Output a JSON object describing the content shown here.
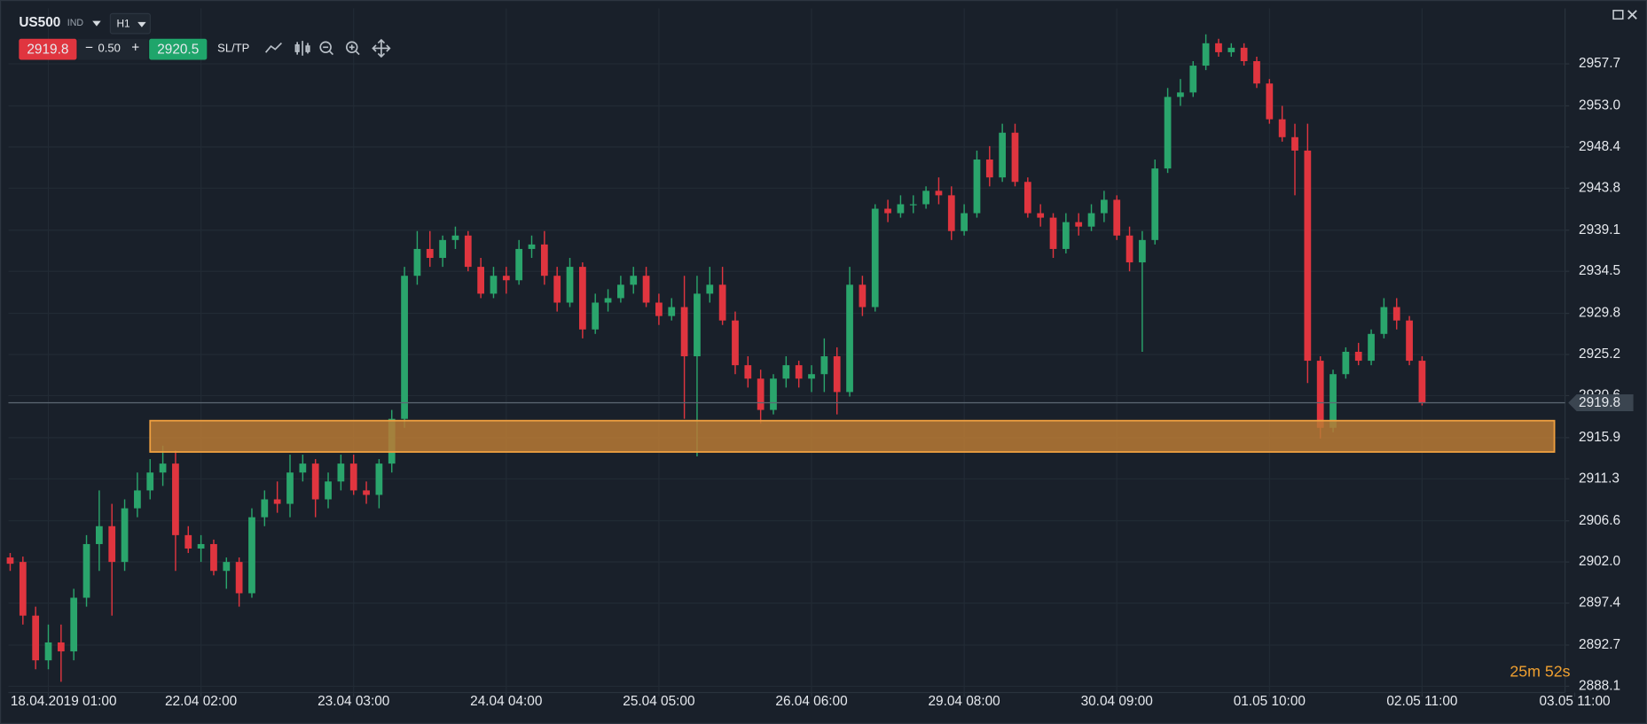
{
  "toolbar": {
    "symbol": "US500",
    "market": "IND",
    "timeframe": "H1",
    "sell_price": "2919.8",
    "decrease": "−",
    "spread": "0.50",
    "increase": "+",
    "buy_price": "2920.5",
    "sltp": "SL/TP"
  },
  "chart_data": {
    "type": "candlestick",
    "up_color": "#2aa56c",
    "down_color": "#e0353f",
    "ohlc": [
      [
        2902.5,
        2903.0,
        2901.0,
        2901.8
      ],
      [
        2902.0,
        2902.6,
        2895.0,
        2896.0
      ],
      [
        2896.0,
        2897.0,
        2890.0,
        2891.0
      ],
      [
        2891.0,
        2895.0,
        2890.0,
        2893.0
      ],
      [
        2893.0,
        2895.0,
        2888.6,
        2892.0
      ],
      [
        2892.0,
        2899.0,
        2891.0,
        2898.0
      ],
      [
        2898.0,
        2905.0,
        2897.0,
        2904.0
      ],
      [
        2904.0,
        2910.0,
        2901.0,
        2906.0
      ],
      [
        2906.0,
        2908.5,
        2896.0,
        2902.0
      ],
      [
        2902.0,
        2909.0,
        2901.0,
        2908.0
      ],
      [
        2908.0,
        2912.0,
        2907.0,
        2910.0
      ],
      [
        2910.0,
        2913.5,
        2909.0,
        2912.0
      ],
      [
        2912.0,
        2915.0,
        2910.5,
        2913.0
      ],
      [
        2913.0,
        2914.5,
        2901.0,
        2905.0
      ],
      [
        2905.0,
        2906.0,
        2903.0,
        2903.5
      ],
      [
        2903.5,
        2905.0,
        2902.0,
        2904.0
      ],
      [
        2904.0,
        2904.5,
        2900.5,
        2901.0
      ],
      [
        2901.0,
        2902.5,
        2899.0,
        2902.0
      ],
      [
        2902.0,
        2902.5,
        2897.0,
        2898.5
      ],
      [
        2898.5,
        2908.0,
        2898.0,
        2907.0
      ],
      [
        2907.0,
        2910.0,
        2906.0,
        2909.0
      ],
      [
        2909.0,
        2911.0,
        2907.5,
        2908.5
      ],
      [
        2908.5,
        2914.0,
        2907.0,
        2912.0
      ],
      [
        2912.0,
        2914.0,
        2911.0,
        2913.0
      ],
      [
        2913.0,
        2913.5,
        2907.0,
        2909.0
      ],
      [
        2909.0,
        2912.0,
        2908.0,
        2911.0
      ],
      [
        2911.0,
        2914.0,
        2910.0,
        2913.0
      ],
      [
        2913.0,
        2914.0,
        2909.5,
        2910.0
      ],
      [
        2910.0,
        2911.0,
        2908.5,
        2909.5
      ],
      [
        2909.5,
        2913.5,
        2908.0,
        2913.0
      ],
      [
        2913.0,
        2919.0,
        2912.0,
        2918.0
      ],
      [
        2918.0,
        2935.0,
        2917.0,
        2934.0
      ],
      [
        2934.0,
        2939.0,
        2933.0,
        2937.0
      ],
      [
        2937.0,
        2939.0,
        2935.0,
        2936.0
      ],
      [
        2936.0,
        2938.5,
        2935.0,
        2938.0
      ],
      [
        2938.0,
        2939.5,
        2937.0,
        2938.5
      ],
      [
        2938.5,
        2939.0,
        2934.5,
        2935.0
      ],
      [
        2935.0,
        2936.0,
        2931.5,
        2932.0
      ],
      [
        2932.0,
        2935.0,
        2931.5,
        2934.0
      ],
      [
        2934.0,
        2935.0,
        2932.0,
        2933.5
      ],
      [
        2933.5,
        2938.0,
        2933.0,
        2937.0
      ],
      [
        2937.0,
        2938.5,
        2936.0,
        2937.5
      ],
      [
        2937.5,
        2939.0,
        2933.0,
        2934.0
      ],
      [
        2934.0,
        2935.0,
        2930.0,
        2931.0
      ],
      [
        2931.0,
        2936.0,
        2930.5,
        2935.0
      ],
      [
        2935.0,
        2935.5,
        2927.0,
        2928.0
      ],
      [
        2928.0,
        2932.0,
        2927.5,
        2931.0
      ],
      [
        2931.0,
        2932.5,
        2930.0,
        2931.5
      ],
      [
        2931.5,
        2934.0,
        2931.0,
        2933.0
      ],
      [
        2933.0,
        2935.0,
        2932.0,
        2934.0
      ],
      [
        2934.0,
        2935.0,
        2930.5,
        2931.0
      ],
      [
        2931.0,
        2932.0,
        2928.5,
        2929.5
      ],
      [
        2929.5,
        2931.5,
        2929.0,
        2930.5
      ],
      [
        2930.5,
        2934.0,
        2918.0,
        2925.0
      ],
      [
        2925.0,
        2934.0,
        2913.8,
        2932.0
      ],
      [
        2932.0,
        2935.0,
        2931.0,
        2933.0
      ],
      [
        2933.0,
        2935.0,
        2928.5,
        2929.0
      ],
      [
        2929.0,
        2930.0,
        2923.0,
        2924.0
      ],
      [
        2924.0,
        2925.0,
        2921.5,
        2922.5
      ],
      [
        2922.5,
        2923.5,
        2917.5,
        2919.0
      ],
      [
        2919.0,
        2923.0,
        2918.5,
        2922.5
      ],
      [
        2922.5,
        2925.0,
        2921.5,
        2924.0
      ],
      [
        2924.0,
        2924.5,
        2921.5,
        2922.5
      ],
      [
        2922.5,
        2924.0,
        2921.0,
        2923.0
      ],
      [
        2923.0,
        2927.0,
        2921.0,
        2925.0
      ],
      [
        2925.0,
        2926.0,
        2918.5,
        2921.0
      ],
      [
        2921.0,
        2935.0,
        2920.5,
        2933.0
      ],
      [
        2933.0,
        2934.0,
        2929.5,
        2930.5
      ],
      [
        2930.5,
        2942.0,
        2930.0,
        2941.5
      ],
      [
        2941.5,
        2942.5,
        2940.0,
        2941.0
      ],
      [
        2941.0,
        2943.0,
        2940.5,
        2942.0
      ],
      [
        2942.0,
        2943.0,
        2941.0,
        2942.0
      ],
      [
        2942.0,
        2944.0,
        2941.5,
        2943.5
      ],
      [
        2943.5,
        2945.0,
        2942.0,
        2943.0
      ],
      [
        2943.0,
        2944.0,
        2938.0,
        2939.0
      ],
      [
        2939.0,
        2942.0,
        2938.5,
        2941.0
      ],
      [
        2941.0,
        2948.0,
        2940.5,
        2947.0
      ],
      [
        2947.0,
        2948.5,
        2944.0,
        2945.0
      ],
      [
        2945.0,
        2951.0,
        2944.5,
        2950.0
      ],
      [
        2950.0,
        2951.0,
        2944.0,
        2944.5
      ],
      [
        2944.5,
        2945.0,
        2940.5,
        2941.0
      ],
      [
        2941.0,
        2942.0,
        2939.5,
        2940.5
      ],
      [
        2940.5,
        2941.0,
        2936.0,
        2937.0
      ],
      [
        2937.0,
        2941.0,
        2936.5,
        2940.0
      ],
      [
        2940.0,
        2941.0,
        2938.5,
        2939.5
      ],
      [
        2939.5,
        2942.0,
        2939.0,
        2941.0
      ],
      [
        2941.0,
        2943.5,
        2940.0,
        2942.5
      ],
      [
        2942.5,
        2943.0,
        2938.0,
        2938.5
      ],
      [
        2938.5,
        2939.5,
        2934.5,
        2935.5
      ],
      [
        2935.5,
        2939.0,
        2925.5,
        2938.0
      ],
      [
        2938.0,
        2947.0,
        2937.5,
        2946.0
      ],
      [
        2946.0,
        2955.0,
        2945.5,
        2954.0
      ],
      [
        2954.0,
        2956.0,
        2953.0,
        2954.5
      ],
      [
        2954.5,
        2958.0,
        2954.0,
        2957.5
      ],
      [
        2957.5,
        2961.0,
        2957.0,
        2960.0
      ],
      [
        2960.0,
        2960.5,
        2958.5,
        2959.0
      ],
      [
        2959.0,
        2960.0,
        2958.5,
        2959.5
      ],
      [
        2959.5,
        2960.0,
        2957.5,
        2958.0
      ],
      [
        2958.0,
        2958.5,
        2955.0,
        2955.5
      ],
      [
        2955.5,
        2956.0,
        2951.0,
        2951.5
      ],
      [
        2951.5,
        2953.0,
        2949.0,
        2949.5
      ],
      [
        2949.5,
        2951.0,
        2943.0,
        2948.0
      ],
      [
        2948.0,
        2951.0,
        2922.0,
        2924.5
      ],
      [
        2924.5,
        2925.0,
        2915.8,
        2917.0
      ],
      [
        2917.0,
        2923.5,
        2916.5,
        2923.0
      ],
      [
        2923.0,
        2926.0,
        2922.5,
        2925.5
      ],
      [
        2925.5,
        2926.5,
        2924.0,
        2924.5
      ],
      [
        2924.5,
        2928.0,
        2924.0,
        2927.5
      ],
      [
        2927.5,
        2931.5,
        2927.0,
        2930.5
      ],
      [
        2930.5,
        2931.5,
        2928.0,
        2929.0
      ],
      [
        2929.0,
        2929.5,
        2924.0,
        2924.5
      ],
      [
        2924.5,
        2925.0,
        2919.5,
        2919.8
      ]
    ],
    "last_price": 2919.8,
    "zone": {
      "x": [
        11,
        121.4
      ],
      "y": [
        2914.3,
        2917.8
      ],
      "color": "#b87a35"
    },
    "countdown": "25m 52s",
    "xlim": [
      -0.14,
      122.24
    ],
    "xticks": [
      {
        "value": 3,
        "label": "18.04.2019 01:00"
      },
      {
        "value": 15,
        "label": "22.04 02:00"
      },
      {
        "value": 27,
        "label": "23.04 03:00"
      },
      {
        "value": 39,
        "label": "24.04 04:00"
      },
      {
        "value": 51,
        "label": "25.04 05:00"
      },
      {
        "value": 63,
        "label": "26.04 06:00"
      },
      {
        "value": 75,
        "label": "29.04 08:00"
      },
      {
        "value": 87,
        "label": "30.04 09:00"
      },
      {
        "value": 99,
        "label": "01.05 10:00"
      },
      {
        "value": 111,
        "label": "02.05 11:00"
      },
      {
        "value": 123,
        "label": "03.05 11:00"
      }
    ],
    "ylim": [
      2887.4,
      2963.9
    ],
    "yticks": [
      2888.1,
      2892.7,
      2897.4,
      {
        "value": 2902,
        "label": "2902.0"
      },
      2906.6,
      2911.3,
      2915.9,
      2920.6,
      2925.2,
      2929.8,
      2934.5,
      2939.1,
      2943.8,
      2948.4,
      {
        "value": 2953,
        "label": "2953.0"
      },
      2957.7
    ],
    "grid": true
  }
}
